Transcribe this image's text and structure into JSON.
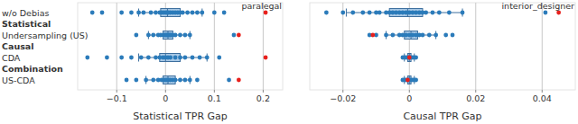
{
  "chart_data": [
    {
      "type": "box",
      "x_label": "Statistical TPR Gap",
      "categories": [
        "w/o Debias",
        "Statistical",
        "Undersampling (US)",
        "Causal",
        "CDA",
        "Combination",
        "US-CDA"
      ],
      "xlim": [
        -0.18,
        0.24
      ],
      "xticks": [
        {
          "value": -0.1,
          "label": "−0.1"
        },
        0,
        0.1,
        0.2
      ],
      "grid": true,
      "series": [
        {
          "color": "#2b7bba",
          "values": [
            [
              -0.15,
              -0.13,
              -0.09,
              -0.07,
              -0.055,
              -0.045,
              -0.03,
              -0.02,
              -0.012,
              -0.008,
              -0.004,
              0.0,
              0.003,
              0.006,
              0.01,
              0.015,
              0.02,
              0.025,
              0.03,
              0.035,
              0.045,
              0.055,
              0.065,
              0.075,
              0.1,
              0.12
            ],
            null,
            [
              -0.06,
              -0.035,
              -0.025,
              -0.015,
              -0.01,
              -0.005,
              -0.002,
              0.0,
              0.002,
              0.004,
              0.006,
              0.008,
              0.01,
              0.012,
              0.015,
              0.02,
              0.03,
              0.04,
              0.05,
              0.14
            ],
            null,
            [
              -0.16,
              -0.12,
              -0.09,
              -0.07,
              -0.05,
              -0.035,
              -0.02,
              -0.012,
              -0.005,
              0.0,
              0.005,
              0.01,
              0.02,
              0.03,
              0.04,
              0.055,
              0.07,
              0.085,
              0.11
            ],
            null,
            [
              -0.08,
              -0.06,
              -0.04,
              -0.025,
              -0.015,
              -0.008,
              -0.003,
              0.0,
              0.003,
              0.006,
              0.01,
              0.015,
              0.02,
              0.03,
              0.04,
              0.05,
              0.065,
              0.13
            ]
          ]
        },
        {
          "name": "paralegal",
          "color": "#e8201c",
          "values": [
            0.205,
            null,
            0.15,
            null,
            0.205,
            null,
            0.15
          ]
        }
      ],
      "boxes": [
        {
          "whislo": -0.055,
          "q1": -0.01,
          "median": 0.004,
          "q3": 0.03,
          "whishi": 0.075
        },
        null,
        {
          "whislo": -0.035,
          "q1": -0.005,
          "median": 0.005,
          "q3": 0.015,
          "whishi": 0.05
        },
        null,
        {
          "whislo": -0.055,
          "q1": -0.012,
          "median": 0.0,
          "q3": 0.03,
          "whishi": 0.085
        },
        null,
        {
          "whislo": -0.04,
          "q1": -0.005,
          "median": 0.005,
          "q3": 0.02,
          "whishi": 0.05
        }
      ]
    },
    {
      "type": "box",
      "x_label": "Causal TPR Gap",
      "tick_labels": "x",
      "xlim": [
        -0.03,
        0.05
      ],
      "xticks": [
        {
          "value": -0.02,
          "label": "−0.02"
        },
        0,
        0.02,
        0.04
      ],
      "grid": true,
      "series": [
        {
          "color": "#2b7bba",
          "values": [
            [
              -0.025,
              -0.02,
              -0.017,
              -0.014,
              -0.012,
              -0.01,
              -0.009,
              -0.007,
              -0.006,
              -0.005,
              -0.004,
              -0.003,
              -0.002,
              -0.001,
              0.0,
              0.001,
              0.002,
              0.003,
              0.004,
              0.005,
              0.007,
              0.009,
              0.012,
              0.016,
              0.041
            ],
            null,
            [
              -0.012,
              -0.01,
              -0.007,
              -0.005,
              -0.003,
              -0.002,
              -0.001,
              0.0,
              0.001,
              0.002,
              0.003,
              0.004,
              0.006,
              0.008,
              0.011,
              0.013
            ],
            null,
            [
              -0.002,
              -0.0015,
              -0.001,
              -0.0005,
              0.0,
              0.0005,
              0.001,
              0.0015,
              0.002
            ],
            null,
            [
              -0.002,
              -0.0015,
              -0.001,
              -0.0005,
              0.0,
              0.0005,
              0.001,
              0.0015,
              0.002
            ]
          ]
        },
        {
          "name": "interior_designer",
          "color": "#e8201c",
          "values": [
            0.045,
            null,
            -0.011,
            null,
            0.0,
            null,
            -0.0005
          ]
        }
      ],
      "boxes": [
        {
          "whislo": -0.019,
          "q1": -0.006,
          "median": -0.0005,
          "q3": 0.004,
          "whishi": 0.016
        },
        null,
        {
          "whislo": -0.007,
          "q1": -0.0015,
          "median": 0.0005,
          "q3": 0.0025,
          "whishi": 0.008
        },
        null,
        {
          "whislo": -0.0015,
          "q1": -0.0005,
          "median": 0.0,
          "q3": 0.0005,
          "whishi": 0.0015
        },
        null,
        {
          "whislo": -0.0015,
          "q1": -0.0005,
          "median": 0.0,
          "q3": 0.0005,
          "whishi": 0.0015
        }
      ]
    }
  ]
}
